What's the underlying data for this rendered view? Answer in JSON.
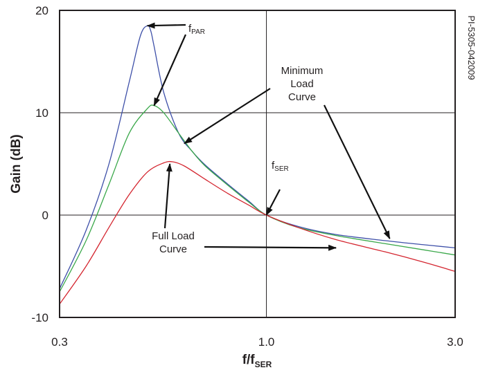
{
  "chart_data": {
    "type": "line",
    "xlabel": {
      "main": "f/f",
      "sub": "SER"
    },
    "ylabel": "Gain (dB)",
    "x_scale": "log",
    "xlim": [
      0.3,
      3.0
    ],
    "ylim": [
      -10,
      20
    ],
    "x_ticks": [
      0.3,
      1.0,
      3.0
    ],
    "x_tick_labels": [
      "0.3",
      "1.0",
      "3.0"
    ],
    "y_ticks": [
      -10,
      0,
      10,
      20
    ],
    "y_tick_labels": [
      "-10",
      "0",
      "10",
      "20"
    ],
    "grid": {
      "horizontal_at": [
        0,
        10
      ],
      "vertical_at": [
        1.0
      ]
    },
    "series": [
      {
        "color": "#3d4fa8",
        "x": [
          0.3,
          0.35,
          0.4,
          0.45,
          0.48,
          0.5,
          0.51,
          0.52,
          0.55,
          0.6,
          0.65,
          0.7,
          0.8,
          0.9,
          1.0,
          1.2,
          1.5,
          2.0,
          2.5,
          3.0
        ],
        "y": [
          -7.2,
          -1.5,
          5.0,
          13.0,
          17.5,
          18.5,
          18.0,
          16.5,
          12.0,
          8.0,
          6.2,
          4.9,
          3.0,
          1.4,
          0.0,
          -1.1,
          -1.9,
          -2.5,
          -2.9,
          -3.2
        ]
      },
      {
        "color": "#3aa84a",
        "x": [
          0.3,
          0.35,
          0.4,
          0.45,
          0.5,
          0.52,
          0.55,
          0.6,
          0.65,
          0.7,
          0.8,
          0.9,
          1.0,
          1.2,
          1.5,
          2.0,
          2.5,
          3.0
        ],
        "y": [
          -7.5,
          -2.5,
          3.0,
          8.0,
          10.4,
          10.7,
          10.0,
          8.0,
          6.2,
          4.8,
          2.9,
          1.3,
          0.0,
          -1.2,
          -2.0,
          -2.8,
          -3.4,
          -3.9
        ]
      },
      {
        "color": "#d4252f",
        "x": [
          0.3,
          0.35,
          0.4,
          0.45,
          0.5,
          0.55,
          0.58,
          0.62,
          0.7,
          0.8,
          0.9,
          1.0,
          1.2,
          1.5,
          2.0,
          2.5,
          3.0
        ],
        "y": [
          -8.7,
          -5.0,
          -1.2,
          2.0,
          4.2,
          5.1,
          5.2,
          4.8,
          3.5,
          2.1,
          1.0,
          0.0,
          -1.2,
          -2.4,
          -3.6,
          -4.6,
          -5.5
        ]
      }
    ],
    "annotations": {
      "fpar": {
        "main": "f",
        "sub": "PAR"
      },
      "fser": {
        "main": "f",
        "sub": "SER"
      },
      "min_load": [
        "Minimum",
        "Load",
        "Curve"
      ],
      "full_load": [
        "Full Load",
        "Curve"
      ]
    },
    "side_label": "PI-5305-042009",
    "arrows": [
      {
        "to_point": [
          0.5,
          18.5
        ],
        "from_label": "fpar"
      },
      {
        "to_point": [
          0.52,
          10.7
        ],
        "from_label": "fpar"
      },
      {
        "to_point": [
          0.62,
          7.0
        ],
        "from_label": "min_load"
      },
      {
        "to_point": [
          2.05,
          -2.3
        ],
        "from_label": "min_load"
      },
      {
        "to_point": [
          1.0,
          0.0
        ],
        "from_label": "fser"
      },
      {
        "to_point": [
          0.57,
          5.0
        ],
        "from_label": "full_load"
      },
      {
        "to_point": [
          1.5,
          -3.2
        ],
        "from_label": "full_load"
      }
    ]
  }
}
